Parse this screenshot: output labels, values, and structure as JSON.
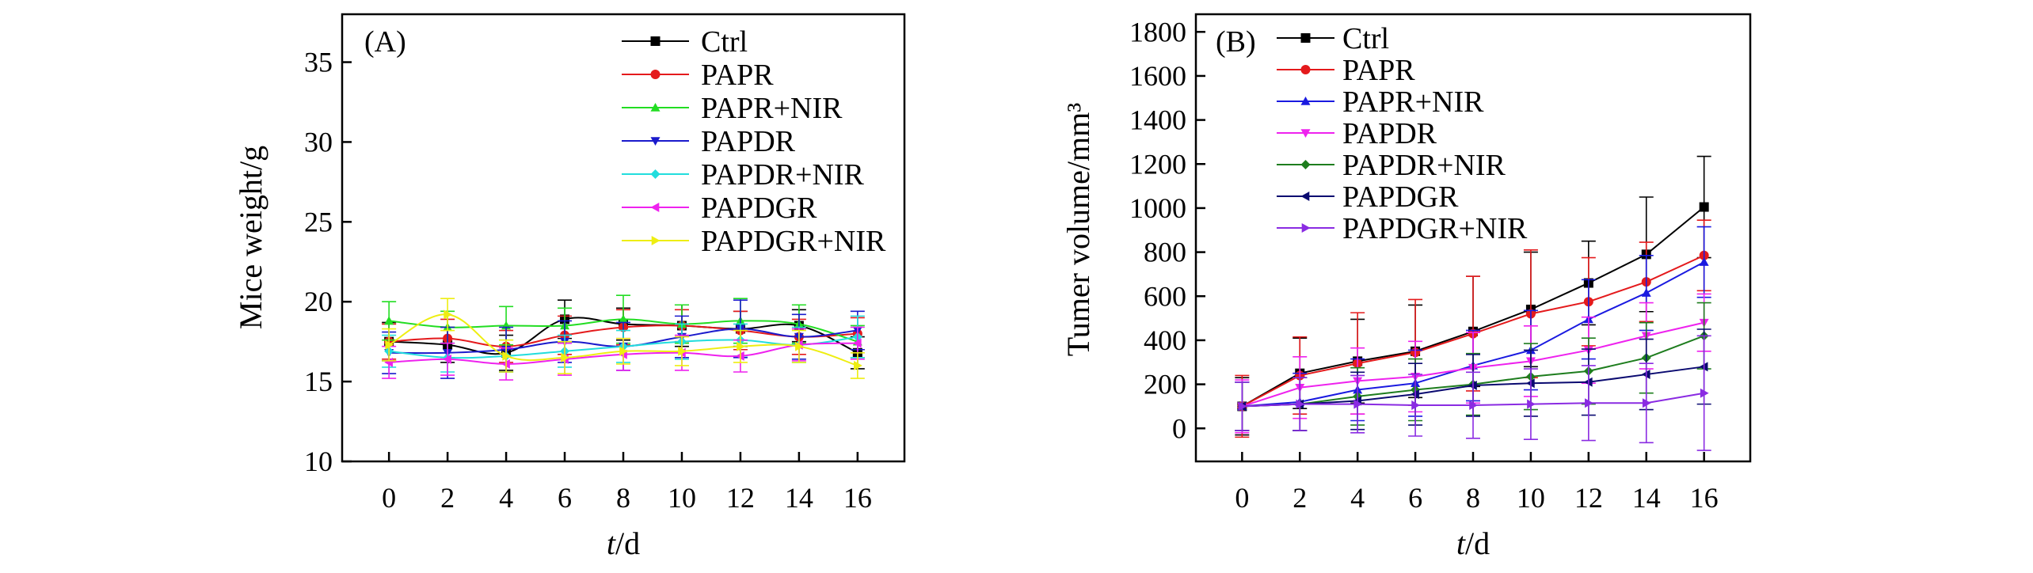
{
  "chart_data": [
    {
      "type": "line",
      "panel_label": "(A)",
      "xlabel_italic": "t",
      "xlabel_rest": "/d",
      "ylabel": "Mice weight/g",
      "xlim": [
        -1.6,
        17.6
      ],
      "ylim": [
        10,
        38
      ],
      "x_ticks": [
        0,
        2,
        4,
        6,
        8,
        10,
        12,
        14,
        16
      ],
      "x_tick_labels": [
        "0",
        "2",
        "4",
        "6",
        "8",
        "10",
        "12",
        "14",
        "16"
      ],
      "y_ticks": [
        10,
        15,
        20,
        25,
        30,
        35
      ],
      "y_tick_labels": [
        "10",
        "15",
        "20",
        "25",
        "30",
        "35"
      ],
      "grid": false,
      "legend_position": "top-right",
      "x": [
        0,
        2,
        4,
        6,
        8,
        10,
        12,
        14,
        16
      ],
      "series": [
        {
          "name": "Ctrl",
          "color": "#000000",
          "marker": "square",
          "values": [
            17.5,
            17.3,
            16.8,
            18.9,
            18.6,
            18.5,
            18.3,
            18.5,
            16.8
          ],
          "errors": [
            1.2,
            1.1,
            1.1,
            1.2,
            1.0,
            1.3,
            1.1,
            1.0,
            1.0
          ]
        },
        {
          "name": "PAPR",
          "color": "#e41a1c",
          "marker": "circle",
          "values": [
            17.5,
            17.7,
            17.2,
            17.9,
            18.4,
            18.5,
            18.2,
            17.8,
            18.0
          ],
          "errors": [
            1.1,
            1.2,
            1.0,
            1.2,
            1.1,
            1.0,
            1.2,
            1.1,
            1.0
          ]
        },
        {
          "name": "PAPR+NIR",
          "color": "#22dd22",
          "marker": "triangle-up",
          "values": [
            18.8,
            18.4,
            18.5,
            18.5,
            18.9,
            18.6,
            18.8,
            18.6,
            17.5
          ],
          "errors": [
            1.2,
            1.0,
            1.2,
            1.1,
            1.5,
            1.2,
            1.4,
            1.2,
            1.0
          ]
        },
        {
          "name": "PAPDR",
          "color": "#1a1acc",
          "marker": "triangle-down",
          "values": [
            16.8,
            16.8,
            17.0,
            17.5,
            17.2,
            17.8,
            18.3,
            17.8,
            18.2
          ],
          "errors": [
            1.3,
            1.6,
            1.4,
            1.3,
            1.5,
            1.3,
            1.8,
            1.4,
            1.2
          ]
        },
        {
          "name": "PAPDR+NIR",
          "color": "#22dddd",
          "marker": "diamond",
          "values": [
            16.9,
            16.5,
            16.6,
            16.9,
            17.2,
            17.5,
            17.6,
            17.3,
            17.8
          ],
          "errors": [
            1.0,
            0.9,
            1.0,
            1.0,
            1.0,
            1.1,
            1.0,
            1.1,
            1.3
          ]
        },
        {
          "name": "PAPDGR",
          "color": "#ee22ee",
          "marker": "triangle-left",
          "values": [
            16.2,
            16.4,
            16.1,
            16.4,
            16.7,
            16.8,
            16.6,
            17.3,
            17.4
          ],
          "errors": [
            1.0,
            1.0,
            1.0,
            1.0,
            1.0,
            1.1,
            1.0,
            1.0,
            1.0
          ]
        },
        {
          "name": "PAPDGR+NIR",
          "color": "#eeee11",
          "marker": "triangle-right",
          "values": [
            17.3,
            19.2,
            16.6,
            16.5,
            16.9,
            16.9,
            17.2,
            17.2,
            16.0
          ],
          "errors": [
            1.0,
            1.0,
            1.0,
            1.0,
            0.8,
            0.9,
            1.0,
            1.0,
            0.8
          ]
        }
      ]
    },
    {
      "type": "line",
      "panel_label": "(B)",
      "xlabel_italic": "t",
      "xlabel_rest": "/d",
      "ylabel": "Tumer volume/mm³",
      "xlim": [
        -1.6,
        17.6
      ],
      "ylim": [
        -150,
        1880
      ],
      "x_ticks": [
        0,
        2,
        4,
        6,
        8,
        10,
        12,
        14,
        16
      ],
      "x_tick_labels": [
        "0",
        "2",
        "4",
        "6",
        "8",
        "10",
        "12",
        "14",
        "16"
      ],
      "y_ticks": [
        0,
        200,
        400,
        600,
        800,
        1000,
        1200,
        1400,
        1600,
        1800
      ],
      "y_tick_labels": [
        "0",
        "200",
        "400",
        "600",
        "800",
        "1000",
        "1200",
        "1400",
        "1600",
        "1800"
      ],
      "grid": false,
      "legend_position": "top-left",
      "x": [
        0,
        2,
        4,
        6,
        8,
        10,
        12,
        14,
        16
      ],
      "series": [
        {
          "name": "Ctrl",
          "color": "#000000",
          "marker": "square",
          "values": [
            100,
            250,
            305,
            350,
            440,
            540,
            660,
            790,
            1005
          ],
          "errors": [
            130,
            160,
            190,
            210,
            250,
            260,
            190,
            260,
            230
          ]
        },
        {
          "name": "PAPR",
          "color": "#e41a1c",
          "marker": "circle",
          "values": [
            100,
            240,
            295,
            345,
            430,
            520,
            575,
            665,
            785
          ],
          "errors": [
            140,
            175,
            230,
            240,
            260,
            290,
            200,
            180,
            160
          ]
        },
        {
          "name": "PAPR+NIR",
          "color": "#1a1ae0",
          "marker": "triangle-up",
          "values": [
            100,
            120,
            175,
            205,
            285,
            355,
            495,
            615,
            755
          ],
          "errors": [
            110,
            130,
            140,
            150,
            160,
            180,
            180,
            170,
            160
          ]
        },
        {
          "name": "PAPDR",
          "color": "#ee22ee",
          "marker": "triangle-down",
          "values": [
            100,
            185,
            215,
            235,
            275,
            305,
            355,
            420,
            480
          ],
          "errors": [
            120,
            140,
            150,
            160,
            160,
            160,
            150,
            150,
            130
          ]
        },
        {
          "name": "PAPDR+NIR",
          "color": "#1e7d1e",
          "marker": "diamond",
          "values": [
            100,
            110,
            145,
            175,
            200,
            235,
            260,
            320,
            420
          ],
          "errors": [
            110,
            120,
            130,
            140,
            140,
            150,
            150,
            160,
            150
          ]
        },
        {
          "name": "PAPDGR",
          "color": "#0a0a70",
          "marker": "triangle-left",
          "values": [
            100,
            110,
            125,
            155,
            195,
            205,
            210,
            245,
            280
          ],
          "errors": [
            110,
            120,
            130,
            140,
            140,
            150,
            150,
            160,
            170
          ]
        },
        {
          "name": "PAPDGR+NIR",
          "color": "#8a2be2",
          "marker": "triangle-right",
          "values": [
            100,
            110,
            110,
            105,
            105,
            110,
            115,
            115,
            160
          ],
          "errors": [
            110,
            120,
            130,
            140,
            150,
            160,
            170,
            180,
            260
          ]
        }
      ]
    }
  ]
}
